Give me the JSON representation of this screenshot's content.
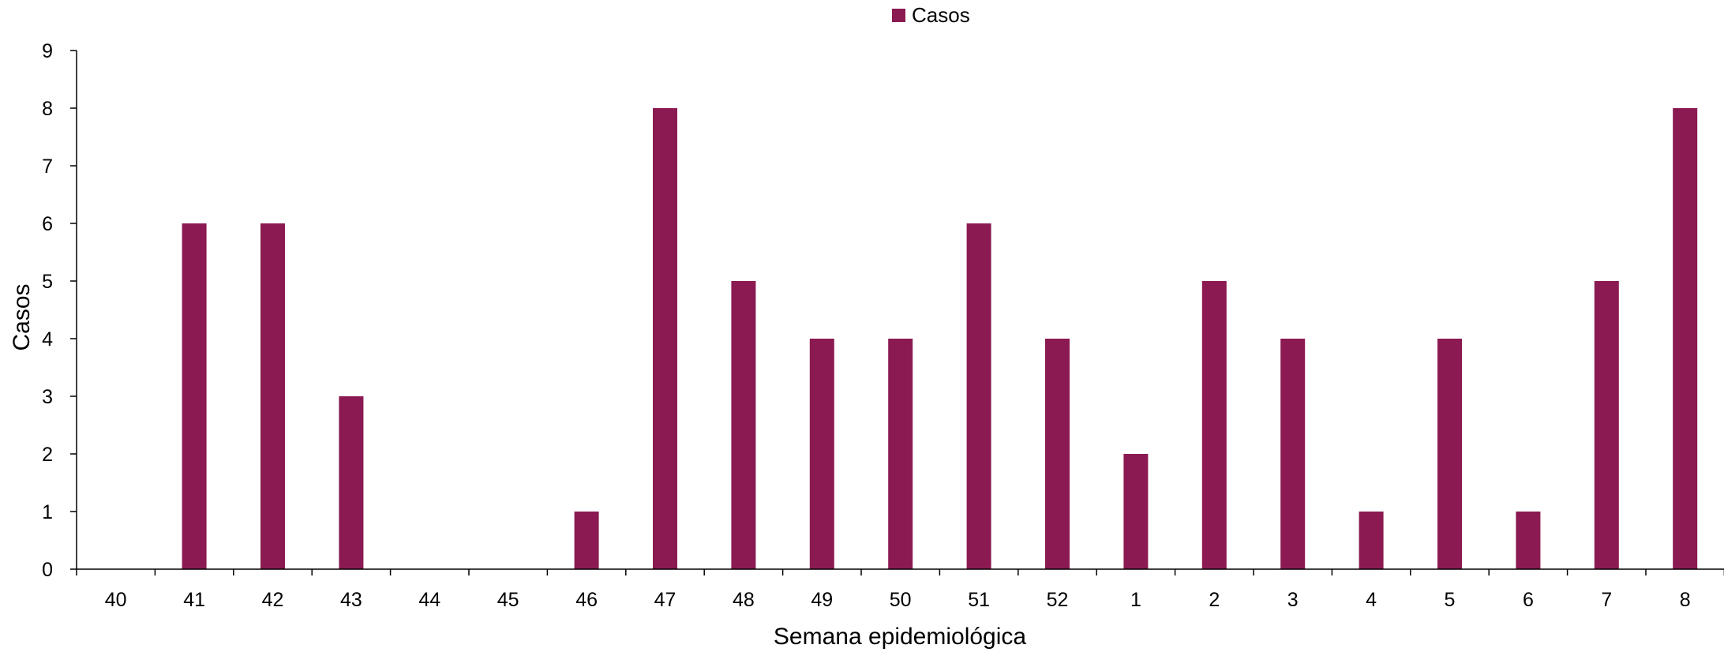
{
  "chart_data": {
    "type": "bar",
    "xlabel": "Semana epidemiológica",
    "ylabel": "Casos",
    "categories": [
      "40",
      "41",
      "42",
      "43",
      "44",
      "45",
      "46",
      "47",
      "48",
      "49",
      "50",
      "51",
      "52",
      "1",
      "2",
      "3",
      "4",
      "5",
      "6",
      "7",
      "8"
    ],
    "series": [
      {
        "name": "Casos",
        "color": "#8B1A52",
        "values": [
          0,
          6,
          6,
          3,
          0,
          0,
          1,
          8,
          5,
          4,
          4,
          6,
          4,
          2,
          5,
          4,
          1,
          4,
          1,
          5,
          8
        ]
      }
    ],
    "ylim": [
      0,
      9
    ],
    "yticks": [
      0,
      1,
      2,
      3,
      4,
      5,
      6,
      7,
      8,
      9
    ],
    "grid": false,
    "legend": "top-center"
  }
}
